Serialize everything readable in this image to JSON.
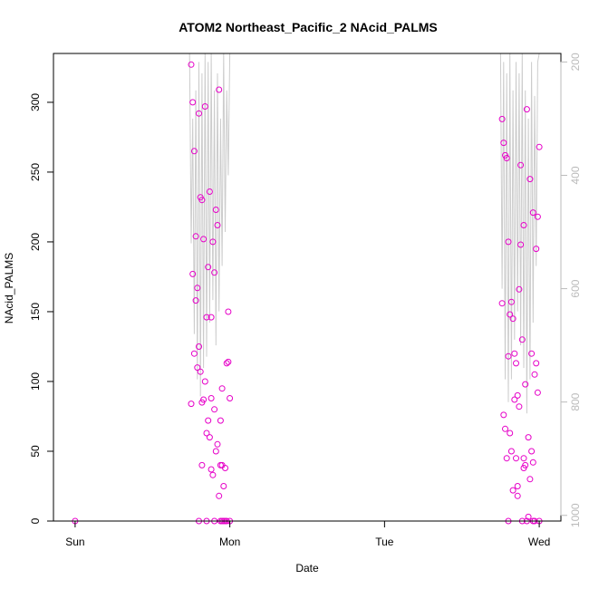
{
  "chart_data": {
    "type": "scatter",
    "title": "ATOM2 Northeast_Pacific_2 NAcid_PALMS",
    "xlabel": "Date",
    "ylabel": "NAcid_PALMS",
    "x_ticks": [
      "Sun",
      "Mon",
      "Tue",
      "Wed"
    ],
    "ylim": [
      0,
      335
    ],
    "y_ticks": [
      "0",
      "50",
      "100",
      "150",
      "200",
      "250",
      "300"
    ],
    "y2_ticks": [
      "200",
      "400",
      "600",
      "800",
      "1000"
    ],
    "y2lim": [
      185,
      1010
    ],
    "y2_reversed": true,
    "xlim_days": [
      -0.14,
      3.14
    ],
    "colors": {
      "points": "#e600c8",
      "pressure_line": "#cccccc",
      "axis": "#000000",
      "y2_axis": "#bbbbbb"
    },
    "series": [
      {
        "marker": "circle",
        "x_days": [
          0.0,
          0.75,
          0.76,
          0.77,
          0.78,
          0.79,
          0.8,
          0.81,
          0.82,
          0.83,
          0.84,
          0.85,
          0.86,
          0.87,
          0.88,
          0.89,
          0.9,
          0.91,
          0.92,
          0.93,
          0.94,
          0.95,
          0.96,
          0.97,
          0.98,
          0.99,
          1.0,
          0.76,
          0.78,
          0.8,
          0.82,
          0.84,
          0.86,
          0.88,
          0.9,
          0.92,
          0.94,
          0.96,
          0.98,
          0.77,
          0.79,
          0.81,
          0.83,
          0.85,
          0.87,
          0.89,
          0.91,
          0.93,
          0.95,
          0.97,
          0.99,
          0.75,
          0.8,
          0.85,
          0.9,
          0.95,
          1.0,
          0.82,
          0.88,
          0.94,
          2.76,
          2.78,
          2.8,
          2.82,
          2.84,
          2.86,
          2.88,
          2.9,
          2.92,
          2.94,
          2.96,
          2.98,
          3.0,
          2.77,
          2.79,
          2.81,
          2.83,
          2.85,
          2.87,
          2.89,
          2.91,
          2.93,
          2.95,
          2.97,
          2.99,
          2.76,
          2.8,
          2.84,
          2.88,
          2.92,
          2.96,
          3.0,
          2.78,
          2.82,
          2.86,
          2.9,
          2.94,
          2.98,
          2.77,
          2.81,
          2.85,
          2.89,
          2.93,
          2.97,
          2.79,
          2.83,
          2.87,
          2.91,
          2.95,
          2.99,
          2.8,
          2.9,
          2.96,
          2.86
        ],
        "y": [
          0,
          327,
          300,
          265,
          204,
          167,
          292,
          232,
          230,
          202,
          297,
          146,
          182,
          236,
          146,
          200,
          178,
          223,
          212,
          309,
          0,
          40,
          0,
          38,
          0,
          114,
          0,
          177,
          158,
          125,
          85,
          100,
          72,
          88,
          80,
          55,
          40,
          25,
          113,
          120,
          110,
          107,
          87,
          63,
          60,
          33,
          50,
          18,
          95,
          0,
          150,
          84,
          0,
          0,
          0,
          0,
          88,
          40,
          37,
          72,
          288,
          262,
          200,
          157,
          120,
          90,
          198,
          212,
          295,
          245,
          221,
          195,
          268,
          271,
          260,
          148,
          145,
          113,
          166,
          130,
          98,
          60,
          50,
          105,
          218,
          156,
          118,
          87,
          255,
          0,
          0,
          0,
          66,
          50,
          25,
          45,
          30,
          113,
          76,
          63,
          45,
          0,
          3,
          0,
          45,
          22,
          82,
          40,
          120,
          92,
          0,
          38,
          42,
          18
        ]
      }
    ],
    "pressure_line": {
      "segments": [
        {
          "x_days": [
            0.74,
            0.75,
            0.76,
            0.77,
            0.78,
            0.79,
            0.8,
            0.81,
            0.82,
            0.83,
            0.84,
            0.85,
            0.86,
            0.87,
            0.88,
            0.89,
            0.9,
            0.91,
            0.92,
            0.93,
            0.94,
            0.95,
            0.96,
            0.97,
            0.98,
            0.99,
            1.0
          ],
          "y2": [
            185,
            520,
            300,
            680,
            250,
            760,
            200,
            790,
            220,
            740,
            185,
            720,
            200,
            660,
            185,
            620,
            250,
            700,
            220,
            640,
            300,
            560,
            185,
            500,
            250,
            400,
            185
          ]
        },
        {
          "x_days": [
            2.74,
            2.75,
            2.76,
            2.77,
            2.78,
            2.79,
            2.8,
            2.81,
            2.82,
            2.83,
            2.84,
            2.85,
            2.86,
            2.87,
            2.88,
            2.89,
            2.9,
            2.91,
            2.92,
            2.93,
            2.94,
            2.95,
            2.96,
            2.97,
            2.98,
            2.99,
            3.0
          ],
          "y2": [
            185,
            185,
            600,
            200,
            760,
            220,
            800,
            185,
            760,
            250,
            690,
            200,
            640,
            220,
            700,
            185,
            740,
            250,
            820,
            300,
            760,
            200,
            660,
            260,
            560,
            200,
            185
          ]
        }
      ]
    }
  }
}
